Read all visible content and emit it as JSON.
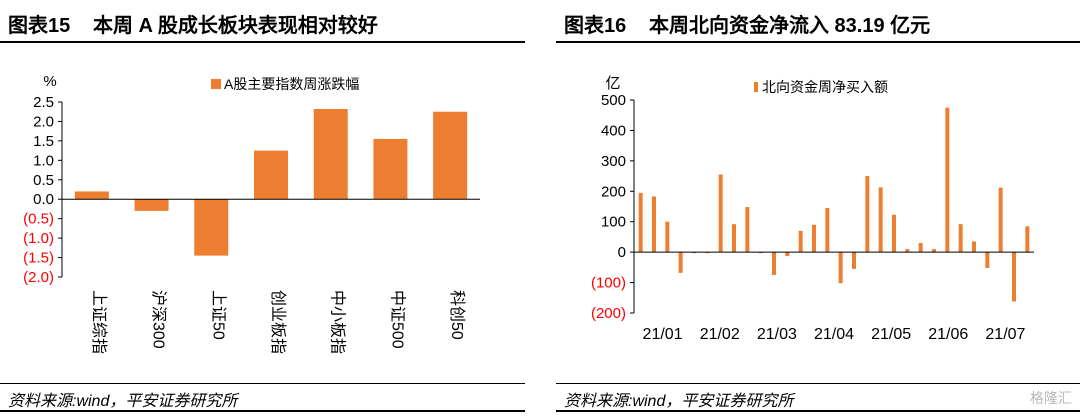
{
  "left": {
    "fig_label": "图表15",
    "title": "本周 A 股成长板块表现相对较好",
    "source": "资料来源:wind，平安证券研究所",
    "chart_data": {
      "type": "bar",
      "unit": "%",
      "legend": "A股主要指数周涨跌幅",
      "categories": [
        "上证综指",
        "沪深300",
        "上证50",
        "创业板指",
        "中小板指",
        "中证500",
        "科创50"
      ],
      "values": [
        0.2,
        -0.3,
        -1.45,
        1.25,
        2.32,
        1.55,
        2.25
      ],
      "ylim": [
        -2.0,
        2.5
      ],
      "yticks": [
        2.5,
        2.0,
        1.5,
        1.0,
        0.5,
        0.0,
        -0.5,
        -1.0,
        -1.5,
        -2.0
      ],
      "ytick_labels": [
        "2.5",
        "2.0",
        "1.5",
        "1.0",
        "0.5",
        "0.0",
        "(0.5)",
        "(1.0)",
        "(1.5)",
        "(2.0)"
      ],
      "bar_color": "#ED7D31",
      "negative_label_color": "#FF0000"
    }
  },
  "right": {
    "fig_label": "图表16",
    "title": "本周北向资金净流入 83.19 亿元",
    "source": "资料来源:wind，平安证券研究所",
    "watermark": "格隆汇",
    "chart_data": {
      "type": "bar",
      "unit": "亿",
      "legend": "北向资金周净买入额",
      "values": [
        195,
        183,
        100,
        -68,
        0,
        0,
        255,
        92,
        148,
        0,
        -75,
        -13,
        70,
        90,
        145,
        -102,
        -55,
        250,
        213,
        123,
        10,
        30,
        10,
        475,
        92,
        35,
        -52,
        212,
        -162,
        85
      ],
      "x_tick_labels": [
        "21/01",
        "21/02",
        "21/03",
        "21/04",
        "21/05",
        "21/06",
        "21/07"
      ],
      "ylim": [
        -200,
        500
      ],
      "yticks": [
        500,
        400,
        300,
        200,
        100,
        0,
        -100,
        -200
      ],
      "ytick_labels": [
        "500",
        "400",
        "300",
        "200",
        "100",
        "0",
        "(100)",
        "(200)"
      ],
      "bar_color": "#ED7D31",
      "negative_label_color": "#FF0000"
    }
  }
}
